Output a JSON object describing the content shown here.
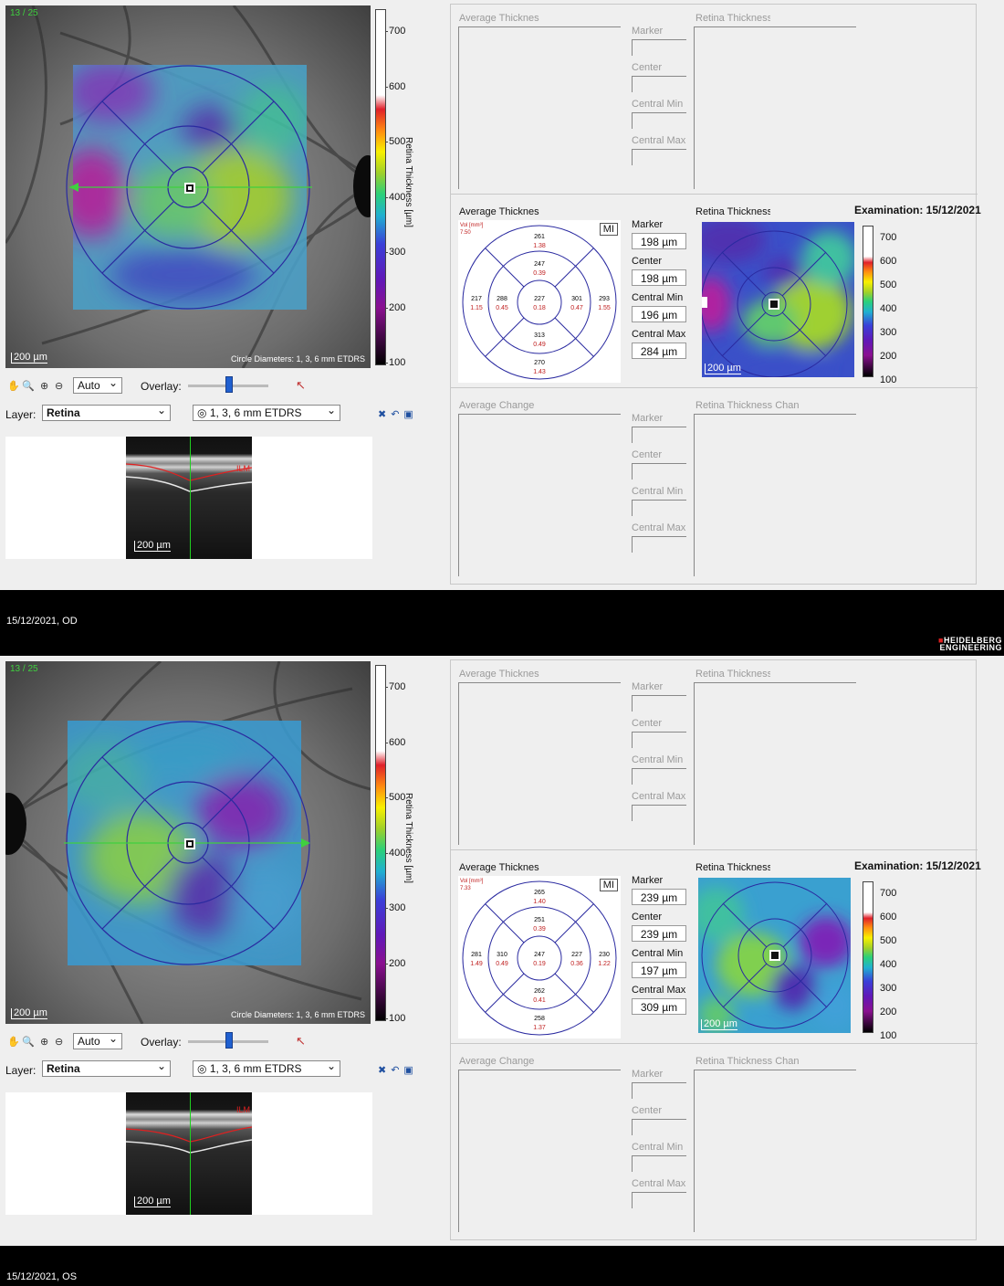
{
  "colors": {
    "ring": "#2a2aa0",
    "arrow": "#3fd03f",
    "value_red": "#c02020"
  },
  "panels": [
    {
      "image_counter": "13 / 25",
      "fundus_scale": "200 µm",
      "circle_diameters": "Circle Diameters: 1, 3, 6 mm ETDRS",
      "colorbar_title": "Retina Thickness [µm]",
      "colorbar_ticks": [
        "700",
        "600",
        "500",
        "400",
        "300",
        "200",
        "100"
      ],
      "toolbar": {
        "zoom_mode": "Auto",
        "overlay_label": "Overlay:"
      },
      "layer": {
        "label": "Layer:",
        "value": "Retina",
        "grid": "1, 3, 6 mm ETDRS"
      },
      "oct": {
        "ilm": "ILM",
        "scale": "200 µm"
      },
      "top": {
        "avg_title": "Average Thicknes",
        "map_title": "Retina Thickness",
        "labels": [
          "Marker",
          "Center",
          "Central Min",
          "Central Max"
        ]
      },
      "mid": {
        "avg_title": "Average Thicknes",
        "map_title": "Retina Thickness",
        "examination": "Examination: 15/12/2021",
        "mi": "MI",
        "vol_label": "Vol [mm³]",
        "vol_value": "7.50",
        "stats": [
          {
            "label": "Marker",
            "value": "198 µm"
          },
          {
            "label": "Center",
            "value": "198 µm"
          },
          {
            "label": "Central Min",
            "value": "196 µm"
          },
          {
            "label": "Central Max",
            "value": "284 µm"
          }
        ],
        "map_scale": "200 µm",
        "cbar_ticks": [
          "700",
          "600",
          "500",
          "400",
          "300",
          "200",
          "100"
        ],
        "etdrs": {
          "center": [
            "227",
            "0.18"
          ],
          "inner_top": [
            "247",
            "0.39"
          ],
          "inner_bottom": [
            "313",
            "0.49"
          ],
          "inner_left": [
            "288",
            "0.45"
          ],
          "inner_right": [
            "301",
            "0.47"
          ],
          "outer_top": [
            "261",
            "1.38"
          ],
          "outer_bottom": [
            "270",
            "1.43"
          ],
          "outer_left": [
            "217",
            "1.15"
          ],
          "outer_right": [
            "293",
            "1.55"
          ]
        }
      },
      "bottom": {
        "avg_title": "Average Change",
        "map_title": "Retina Thickness Chan",
        "labels": [
          "Marker",
          "Center",
          "Central Min",
          "Central Max"
        ]
      },
      "caption": "15/12/2021, OD"
    },
    {
      "image_counter": "13 / 25",
      "fundus_scale": "200 µm",
      "circle_diameters": "Circle Diameters: 1, 3, 6 mm ETDRS",
      "colorbar_title": "Retina Thickness [µm]",
      "colorbar_ticks": [
        "700",
        "600",
        "500",
        "400",
        "300",
        "200",
        "100"
      ],
      "toolbar": {
        "zoom_mode": "Auto",
        "overlay_label": "Overlay:"
      },
      "layer": {
        "label": "Layer:",
        "value": "Retina",
        "grid": "1, 3, 6 mm ETDRS"
      },
      "oct": {
        "ilm": "ILM",
        "scale": "200 µm"
      },
      "top": {
        "avg_title": "Average Thicknes",
        "map_title": "Retina Thickness",
        "labels": [
          "Marker",
          "Center",
          "Central Min",
          "Central Max"
        ]
      },
      "mid": {
        "avg_title": "Average Thicknes",
        "map_title": "Retina Thickness",
        "examination": "Examination: 15/12/2021",
        "mi": "MI",
        "vol_label": "Vol [mm³]",
        "vol_value": "7.33",
        "stats": [
          {
            "label": "Marker",
            "value": "239 µm"
          },
          {
            "label": "Center",
            "value": "239 µm"
          },
          {
            "label": "Central Min",
            "value": "197 µm"
          },
          {
            "label": "Central Max",
            "value": "309 µm"
          }
        ],
        "map_scale": "200 µm",
        "cbar_ticks": [
          "700",
          "600",
          "500",
          "400",
          "300",
          "200",
          "100"
        ],
        "etdrs": {
          "center": [
            "247",
            "0.19"
          ],
          "inner_top": [
            "251",
            "0.39"
          ],
          "inner_bottom": [
            "262",
            "0.41"
          ],
          "inner_left": [
            "310",
            "0.49"
          ],
          "inner_right": [
            "227",
            "0.36"
          ],
          "outer_top": [
            "265",
            "1.40"
          ],
          "outer_bottom": [
            "258",
            "1.37"
          ],
          "outer_left": [
            "281",
            "1.49"
          ],
          "outer_right": [
            "230",
            "1.22"
          ]
        }
      },
      "bottom": {
        "avg_title": "Average Change",
        "map_title": "Retina Thickness Chan",
        "labels": [
          "Marker",
          "Center",
          "Central Min",
          "Central Max"
        ]
      },
      "caption": "15/12/2021, OS"
    }
  ],
  "brand": {
    "line1": "HEIDELBERG",
    "line2": "ENGINEERING"
  }
}
